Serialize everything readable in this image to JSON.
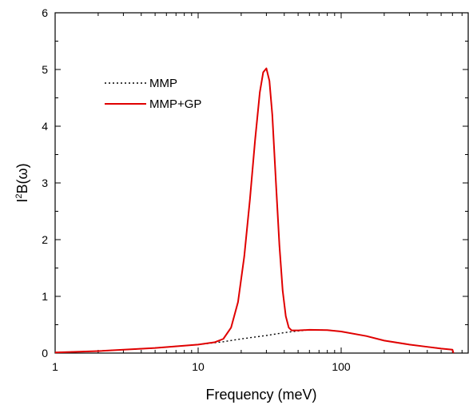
{
  "chart_data": {
    "type": "line",
    "title": "",
    "xlabel": "Frequency (meV)",
    "ylabel_base": "I",
    "ylabel_sup": "2",
    "ylabel_rest": "B(ω)",
    "xscale": "log",
    "xlim": [
      1,
      700
    ],
    "ylim": [
      0,
      6
    ],
    "x_tick_labels": [
      "1",
      "10",
      "100"
    ],
    "x_ticks": [
      1,
      10,
      100
    ],
    "y_tick_labels": [
      "0",
      "1",
      "2",
      "3",
      "4",
      "5",
      "6"
    ],
    "y_ticks": [
      0,
      1,
      2,
      3,
      4,
      5,
      6
    ],
    "grid": false,
    "legend_position": "top-left",
    "series": [
      {
        "name": "MMP",
        "style": "dotted",
        "color": "#000000",
        "x": [
          1,
          2,
          5,
          10,
          15,
          20,
          30,
          40,
          50,
          60,
          80,
          100,
          150,
          200,
          300,
          400,
          500,
          600,
          610
        ],
        "y": [
          0.01,
          0.035,
          0.09,
          0.15,
          0.2,
          0.25,
          0.31,
          0.36,
          0.39,
          0.41,
          0.405,
          0.38,
          0.3,
          0.22,
          0.15,
          0.11,
          0.08,
          0.06,
          0.0
        ]
      },
      {
        "name": "MMP+GP",
        "style": "solid",
        "color": "#e00000",
        "x": [
          1,
          2,
          5,
          10,
          13,
          15,
          17,
          19,
          21,
          23,
          25,
          27,
          28.5,
          30,
          31.5,
          33,
          35,
          37,
          39,
          41,
          43,
          45,
          50,
          60,
          80,
          100,
          150,
          200,
          300,
          400,
          500,
          600,
          610
        ],
        "y": [
          0.01,
          0.035,
          0.09,
          0.15,
          0.19,
          0.25,
          0.45,
          0.9,
          1.7,
          2.7,
          3.75,
          4.6,
          4.95,
          5.02,
          4.8,
          4.2,
          3.0,
          1.9,
          1.1,
          0.65,
          0.45,
          0.4,
          0.4,
          0.41,
          0.405,
          0.38,
          0.3,
          0.22,
          0.15,
          0.11,
          0.08,
          0.06,
          0.0
        ]
      }
    ]
  }
}
